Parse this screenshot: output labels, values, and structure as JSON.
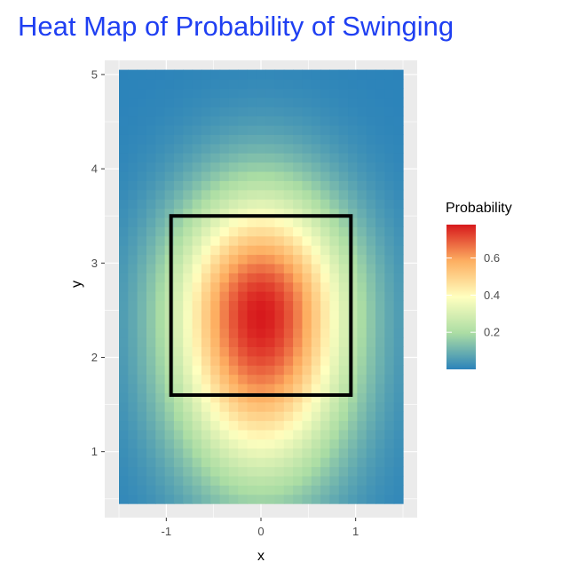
{
  "chart_data": {
    "type": "heatmap",
    "title": "Heat Map of Probability of Swinging",
    "xlabel": "x",
    "ylabel": "y",
    "xlim": [
      -1.65,
      1.65
    ],
    "ylim": [
      0.3,
      5.15
    ],
    "x_ticks": [
      -1,
      0,
      1
    ],
    "x_tick_labels": [
      "-1",
      "0",
      "1"
    ],
    "y_ticks": [
      1,
      2,
      3,
      4,
      5
    ],
    "y_tick_labels": [
      "1",
      "2",
      "3",
      "4",
      "5"
    ],
    "x_range": [
      -1.5,
      1.5
    ],
    "y_range": [
      0.45,
      5.05
    ],
    "grid": true,
    "value_model": {
      "peak": 0.78,
      "center": [
        0.0,
        2.45
      ],
      "spread_x": 0.9,
      "spread_y_below": 1.6,
      "spread_y_above": 1.25
    },
    "strike_zone": {
      "x": [
        -0.95,
        0.95
      ],
      "y": [
        1.6,
        3.5
      ]
    },
    "legend": {
      "title": "Probability",
      "position": "right",
      "range": [
        0.0,
        0.78
      ],
      "ticks": [
        0.2,
        0.4,
        0.6
      ],
      "tick_labels": [
        "0.2",
        "0.4",
        "0.6"
      ]
    },
    "colors": {
      "title": "#1f3ff2",
      "panel_background": "#ebebeb",
      "grid": "#ffffff",
      "box": "#000000",
      "scale": [
        "#2b83ba",
        "#abdda4",
        "#ffffbf",
        "#fdae61",
        "#d7191c"
      ]
    }
  }
}
